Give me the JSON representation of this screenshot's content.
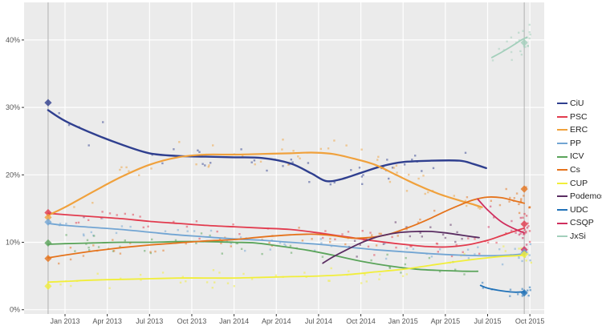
{
  "chart_data": {
    "type": "line",
    "subtype": "scatter-with-loess-trend",
    "title": "",
    "xlabel": "",
    "ylabel": "",
    "x_axis": {
      "tick_labels": [
        "Jan 2013",
        "Apr 2013",
        "Jul 2013",
        "Oct 2013",
        "Jan 2014",
        "Apr 2014",
        "Jul 2014",
        "Oct 2014",
        "Jan 2015",
        "Apr 2015",
        "Jul 2015",
        "Oct 2015"
      ],
      "tick_months": [
        0,
        3,
        6,
        9,
        12,
        15,
        18,
        21,
        24,
        27,
        30,
        33
      ]
    },
    "y_axis": {
      "tick_labels": [
        "0%",
        "10%",
        "20%",
        "30%",
        "40%"
      ],
      "tick_values": [
        0,
        10,
        20,
        30,
        40
      ],
      "unit": "%",
      "shown_range": [
        0,
        45.5
      ]
    },
    "grid": true,
    "legend_position": "right",
    "legend_entries": [
      "CiU",
      "PSC",
      "ERC",
      "PP",
      "ICV",
      "Cs",
      "CUP",
      "Podemos",
      "UDC",
      "CSQP",
      "JxSi"
    ],
    "elections": [
      {
        "label": "election-nov-2012",
        "m": -1.2,
        "results": [
          [
            "CiU",
            30.7
          ],
          [
            "PSC",
            14.4
          ],
          [
            "ERC",
            13.7
          ],
          [
            "PP",
            13.0
          ],
          [
            "ICV",
            9.9
          ],
          [
            "Cs",
            7.6
          ],
          [
            "CUP",
            3.5
          ]
        ]
      },
      {
        "label": "election-sep-2015",
        "m": 32.6,
        "results": [
          [
            "JxSi",
            39.6
          ],
          [
            "Cs",
            17.9
          ],
          [
            "PSC",
            12.7
          ],
          [
            "CSQP",
            8.9
          ],
          [
            "PP",
            8.5
          ],
          [
            "CUP",
            8.2
          ],
          [
            "UDC",
            2.5
          ]
        ]
      }
    ],
    "series": [
      {
        "name": "CiU",
        "color": "#2f3f8f",
        "width": 2.4,
        "trend": [
          [
            -1.2,
            29.6
          ],
          [
            0,
            28.0
          ],
          [
            2,
            26.1
          ],
          [
            4,
            24.5
          ],
          [
            6,
            23.2
          ],
          [
            8,
            22.8
          ],
          [
            10,
            22.7
          ],
          [
            12,
            22.6
          ],
          [
            14,
            22.5
          ],
          [
            16,
            21.7
          ],
          [
            17.5,
            20.2
          ],
          [
            18.5,
            19.1
          ],
          [
            19.5,
            19.3
          ],
          [
            21,
            20.3
          ],
          [
            22.5,
            21.3
          ],
          [
            24,
            21.9
          ],
          [
            26,
            22.1
          ],
          [
            28,
            22.1
          ],
          [
            29,
            21.6
          ],
          [
            29.9,
            21.0
          ]
        ],
        "scatter": {
          "from": -0.5,
          "to": 30,
          "n": 46,
          "sd": 1.3,
          "cluster": 0
        }
      },
      {
        "name": "PSC",
        "color": "#e23b4e",
        "width": 1.8,
        "trend": [
          [
            -1.2,
            14.3
          ],
          [
            0,
            14.1
          ],
          [
            2,
            13.8
          ],
          [
            4,
            13.5
          ],
          [
            6,
            13.1
          ],
          [
            8,
            12.8
          ],
          [
            10,
            12.5
          ],
          [
            12,
            12.3
          ],
          [
            14,
            12.1
          ],
          [
            16,
            11.9
          ],
          [
            18,
            11.4
          ],
          [
            20,
            10.8
          ],
          [
            22,
            10.2
          ],
          [
            24,
            9.7
          ],
          [
            25.5,
            9.4
          ],
          [
            27,
            9.3
          ],
          [
            28.5,
            9.6
          ],
          [
            30,
            10.3
          ],
          [
            31,
            11.0
          ],
          [
            32,
            11.7
          ],
          [
            32.6,
            12.1
          ]
        ],
        "scatter": {
          "from": -0.5,
          "to": 32.2,
          "n": 48,
          "sd": 1.1,
          "cluster": 10,
          "csd": 1.3
        }
      },
      {
        "name": "ERC",
        "color": "#f0a13c",
        "width": 2.2,
        "trend": [
          [
            -1.2,
            14.0
          ],
          [
            0,
            15.2
          ],
          [
            2,
            17.5
          ],
          [
            4,
            19.7
          ],
          [
            6,
            21.5
          ],
          [
            8,
            22.6
          ],
          [
            10,
            23.0
          ],
          [
            12,
            23.0
          ],
          [
            14,
            23.1
          ],
          [
            16,
            23.2
          ],
          [
            17.5,
            23.3
          ],
          [
            19,
            23.1
          ],
          [
            20.5,
            22.4
          ],
          [
            22,
            21.5
          ],
          [
            23.5,
            20.0
          ],
          [
            25,
            18.5
          ],
          [
            26.5,
            17.2
          ],
          [
            28,
            16.2
          ],
          [
            29,
            15.6
          ],
          [
            29.6,
            15.2
          ]
        ],
        "scatter": {
          "from": -0.5,
          "to": 29.6,
          "n": 46,
          "sd": 1.3,
          "cluster": 0
        }
      },
      {
        "name": "PP",
        "color": "#72a5d3",
        "width": 1.8,
        "trend": [
          [
            -1.2,
            12.8
          ],
          [
            0,
            12.5
          ],
          [
            2,
            12.2
          ],
          [
            4,
            11.9
          ],
          [
            6,
            11.5
          ],
          [
            8,
            11.1
          ],
          [
            10,
            10.8
          ],
          [
            12,
            10.5
          ],
          [
            14,
            10.3
          ],
          [
            16,
            10.0
          ],
          [
            18,
            9.7
          ],
          [
            20,
            9.3
          ],
          [
            22,
            8.9
          ],
          [
            24,
            8.6
          ],
          [
            26,
            8.3
          ],
          [
            28,
            8.1
          ],
          [
            30,
            8.0
          ],
          [
            31.5,
            8.1
          ],
          [
            32.6,
            8.3
          ]
        ],
        "scatter": {
          "from": -0.5,
          "to": 32.2,
          "n": 46,
          "sd": 1.0,
          "cluster": 8,
          "csd": 1.2
        }
      },
      {
        "name": "ICV",
        "color": "#5aa45a",
        "width": 1.8,
        "trend": [
          [
            -1.2,
            9.7
          ],
          [
            0,
            9.8
          ],
          [
            2,
            9.9
          ],
          [
            4,
            10.0
          ],
          [
            6,
            10.0
          ],
          [
            8,
            10.1
          ],
          [
            10,
            10.1
          ],
          [
            12,
            10.0
          ],
          [
            13.5,
            9.9
          ],
          [
            15,
            9.5
          ],
          [
            17,
            8.9
          ],
          [
            19,
            8.1
          ],
          [
            21,
            7.2
          ],
          [
            23,
            6.5
          ],
          [
            25,
            6.0
          ],
          [
            27,
            5.8
          ],
          [
            28.5,
            5.7
          ],
          [
            29.3,
            5.7
          ]
        ],
        "scatter": {
          "from": -0.5,
          "to": 29.3,
          "n": 40,
          "sd": 1.0,
          "cluster": 0
        }
      },
      {
        "name": "Cs",
        "color": "#e5731c",
        "width": 1.8,
        "trend": [
          [
            -1.2,
            7.7
          ],
          [
            0,
            8.1
          ],
          [
            2,
            8.7
          ],
          [
            4,
            9.2
          ],
          [
            6,
            9.6
          ],
          [
            8,
            9.9
          ],
          [
            10,
            10.2
          ],
          [
            12,
            10.4
          ],
          [
            14,
            10.8
          ],
          [
            16,
            11.1
          ],
          [
            17.5,
            11.2
          ],
          [
            19,
            11.0
          ],
          [
            20.5,
            10.6
          ],
          [
            22,
            10.8
          ],
          [
            23,
            11.2
          ],
          [
            24,
            11.9
          ],
          [
            25,
            12.7
          ],
          [
            26,
            13.6
          ],
          [
            27,
            14.6
          ],
          [
            28,
            15.5
          ],
          [
            29,
            16.3
          ],
          [
            30,
            16.7
          ],
          [
            31,
            16.6
          ],
          [
            32,
            16.1
          ],
          [
            32.6,
            15.8
          ]
        ],
        "scatter": {
          "from": -0.5,
          "to": 32.2,
          "n": 48,
          "sd": 1.1,
          "cluster": 10,
          "csd": 1.5
        }
      },
      {
        "name": "CUP",
        "color": "#f1ee3a",
        "width": 1.8,
        "trend": [
          [
            -1.2,
            4.1
          ],
          [
            0,
            4.2
          ],
          [
            2,
            4.4
          ],
          [
            4,
            4.5
          ],
          [
            6,
            4.6
          ],
          [
            8,
            4.7
          ],
          [
            10,
            4.7
          ],
          [
            12,
            4.7
          ],
          [
            14,
            4.8
          ],
          [
            16,
            4.9
          ],
          [
            18,
            5.0
          ],
          [
            20,
            5.2
          ],
          [
            22,
            5.6
          ],
          [
            24,
            6.0
          ],
          [
            26,
            6.6
          ],
          [
            28,
            7.2
          ],
          [
            30,
            7.7
          ],
          [
            31,
            7.9
          ],
          [
            32,
            8.0
          ],
          [
            32.6,
            8.1
          ]
        ],
        "scatter": {
          "from": -0.5,
          "to": 32.2,
          "n": 44,
          "sd": 0.8,
          "cluster": 8,
          "csd": 1.1
        }
      },
      {
        "name": "Podemos",
        "color": "#5a2d62",
        "width": 1.8,
        "trend": [
          [
            18.3,
            6.9
          ],
          [
            19,
            7.8
          ],
          [
            20,
            8.9
          ],
          [
            21,
            9.9
          ],
          [
            22,
            10.7
          ],
          [
            23,
            11.2
          ],
          [
            24,
            11.5
          ],
          [
            25,
            11.6
          ],
          [
            26,
            11.6
          ],
          [
            27,
            11.4
          ],
          [
            28,
            11.1
          ],
          [
            29,
            10.8
          ],
          [
            29.4,
            10.7
          ]
        ],
        "scatter": {
          "from": 18.3,
          "to": 29.4,
          "n": 18,
          "sd": 1.2,
          "cluster": 0
        }
      },
      {
        "name": "UDC",
        "color": "#2172b8",
        "width": 1.8,
        "trend": [
          [
            29.5,
            3.6
          ],
          [
            30,
            3.2
          ],
          [
            31,
            2.8
          ],
          [
            32,
            2.6
          ],
          [
            32.6,
            2.7
          ]
        ],
        "scatter": {
          "from": 29.5,
          "to": 32.2,
          "n": 6,
          "sd": 0.6,
          "cluster": 8,
          "csd": 0.8
        }
      },
      {
        "name": "CSQP",
        "color": "#d02f5e",
        "width": 1.8,
        "trend": [
          [
            29.3,
            16.4
          ],
          [
            30,
            14.8
          ],
          [
            31,
            13.0
          ],
          [
            32,
            11.9
          ],
          [
            32.6,
            11.4
          ]
        ],
        "scatter": {
          "from": 29.3,
          "to": 32.2,
          "n": 6,
          "sd": 1.5,
          "cluster": 10,
          "csd": 1.6
        }
      },
      {
        "name": "JxSi",
        "color": "#a3cfbb",
        "width": 1.8,
        "trend": [
          [
            30.3,
            37.4
          ],
          [
            31,
            38.2
          ],
          [
            31.8,
            39.2
          ],
          [
            32.4,
            40.0
          ],
          [
            32.8,
            40.4
          ]
        ],
        "scatter": {
          "from": 30.3,
          "to": 32.2,
          "n": 8,
          "sd": 1.8,
          "cluster": 14,
          "csd": 2.0
        }
      }
    ]
  },
  "layout_colors": {
    "plot_bg": "#ebebeb",
    "grid": "#ffffff",
    "axis_text": "#555555",
    "tick_mark": "#333333",
    "election_line": "#b0b0b0"
  }
}
